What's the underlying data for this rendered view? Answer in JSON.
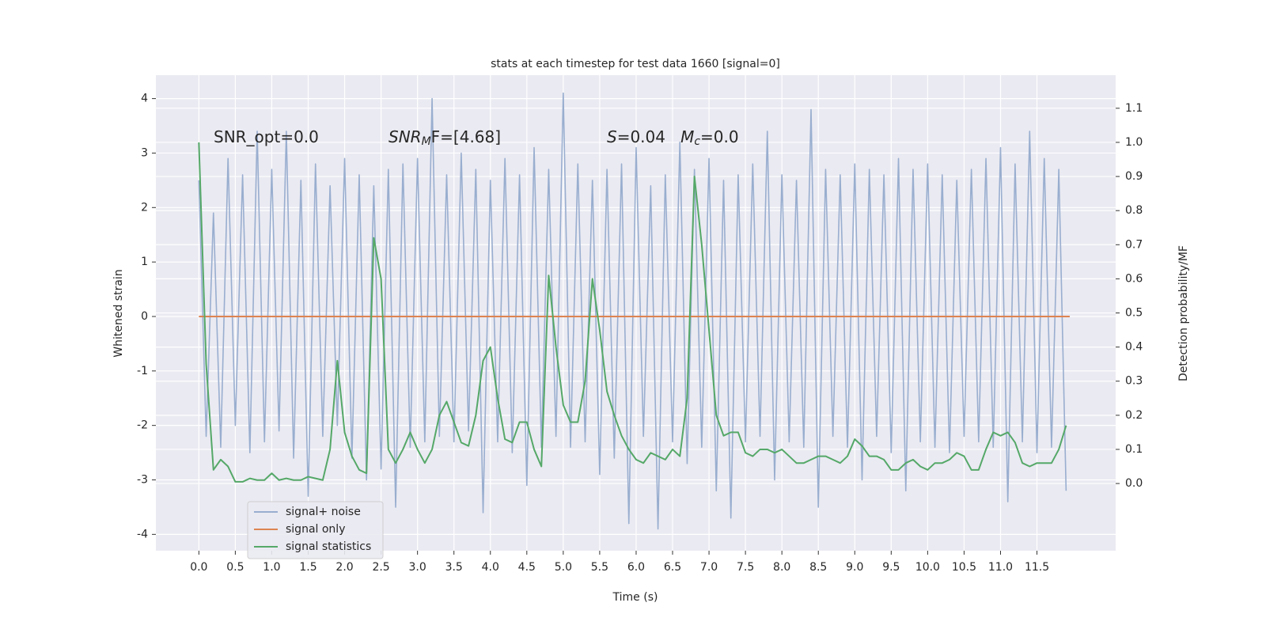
{
  "chart_data": {
    "type": "line",
    "title": "stats at each timestep for test data 1660 [signal=0]",
    "xlabel": "Time (s)",
    "ylabel": "Whitened strain",
    "y2label": "Detection probability/MF",
    "background": "#eaeaf2",
    "grid": true,
    "legend_loc": "lower left",
    "xlim": [
      -0.59,
      12.58
    ],
    "ylim": [
      -4.3,
      4.43
    ],
    "y2lim": [
      -0.197,
      1.197
    ],
    "xticks": [
      {
        "value": 0,
        "label": "0.0"
      },
      0.5,
      {
        "value": 1,
        "label": "1.0"
      },
      1.5,
      {
        "value": 2,
        "label": "2.0"
      },
      2.5,
      {
        "value": 3,
        "label": "3.0"
      },
      3.5,
      {
        "value": 4,
        "label": "4.0"
      },
      4.5,
      {
        "value": 5,
        "label": "5.0"
      },
      5.5,
      {
        "value": 6,
        "label": "6.0"
      },
      6.5,
      {
        "value": 7,
        "label": "7.0"
      },
      7.5,
      {
        "value": 8,
        "label": "8.0"
      },
      8.5,
      {
        "value": 9,
        "label": "9.0"
      },
      9.5,
      {
        "value": 10,
        "label": "10.0"
      },
      10.5,
      {
        "value": 11,
        "label": "11.0"
      },
      11.5
    ],
    "yticks": [
      -4,
      -3,
      -2,
      -1,
      0,
      1,
      2,
      3,
      4
    ],
    "y2ticks": [
      {
        "value": 0,
        "label": "0.0"
      },
      0.1,
      0.2,
      0.3,
      0.4,
      0.5,
      0.6,
      0.7,
      0.8,
      0.9,
      {
        "value": 1,
        "label": "1.0"
      },
      1.1
    ],
    "annotations": [
      [
        {
          "text": "SNR_opt=0.0"
        }
      ],
      [
        {
          "text": "SNR",
          "style": "italic"
        },
        {
          "text": "M",
          "style": "sub"
        },
        {
          "text": "F=[4.68]"
        }
      ],
      [
        {
          "text": "S",
          "style": "italic"
        },
        {
          "text": "=0.04   "
        },
        {
          "text": "M",
          "style": "italic"
        },
        {
          "text": "c",
          "style": "sub"
        },
        {
          "text": "=0.0"
        }
      ]
    ],
    "x": [
      0.0,
      0.1,
      0.2,
      0.3,
      0.4,
      0.5,
      0.6,
      0.7,
      0.8,
      0.9,
      1.0,
      1.1,
      1.2,
      1.3,
      1.4,
      1.5,
      1.6,
      1.7,
      1.8,
      1.9,
      2.0,
      2.1,
      2.2,
      2.3,
      2.4,
      2.5,
      2.6,
      2.7,
      2.8,
      2.9,
      3.0,
      3.1,
      3.2,
      3.3,
      3.4,
      3.5,
      3.6,
      3.7,
      3.8,
      3.9,
      4.0,
      4.1,
      4.2,
      4.3,
      4.4,
      4.5,
      4.6,
      4.7,
      4.8,
      4.9,
      5.0,
      5.1,
      5.2,
      5.3,
      5.4,
      5.5,
      5.6,
      5.7,
      5.8,
      5.9,
      6.0,
      6.1,
      6.2,
      6.3,
      6.4,
      6.5,
      6.6,
      6.7,
      6.8,
      6.9,
      7.0,
      7.1,
      7.2,
      7.3,
      7.4,
      7.5,
      7.6,
      7.7,
      7.8,
      7.9,
      8.0,
      8.1,
      8.2,
      8.3,
      8.4,
      8.5,
      8.6,
      8.7,
      8.8,
      8.9,
      9.0,
      9.1,
      9.2,
      9.3,
      9.4,
      9.5,
      9.6,
      9.7,
      9.8,
      9.9,
      10.0,
      10.1,
      10.2,
      10.3,
      10.4,
      10.5,
      10.6,
      10.7,
      10.8,
      10.9,
      11.0,
      11.1,
      11.2,
      11.3,
      11.4,
      11.5,
      11.6,
      11.7,
      11.8,
      11.9
    ],
    "series": [
      {
        "name": "signal+ noise",
        "color": "#99aecf",
        "values": [
          2.5,
          -2.2,
          1.9,
          -2.4,
          2.9,
          -2.0,
          2.6,
          -2.5,
          3.4,
          -2.3,
          2.7,
          -2.1,
          3.4,
          -2.6,
          2.5,
          -3.3,
          2.8,
          -2.2,
          2.4,
          -2.0,
          2.9,
          -2.6,
          2.6,
          -3.0,
          2.4,
          -2.8,
          2.7,
          -3.5,
          2.8,
          -2.4,
          2.9,
          -2.3,
          4.0,
          -2.2,
          2.6,
          -2.3,
          3.0,
          -2.1,
          2.7,
          -3.6,
          2.5,
          -2.3,
          2.9,
          -2.5,
          2.6,
          -3.1,
          3.1,
          -2.4,
          2.7,
          -2.2,
          4.1,
          -2.4,
          2.8,
          -2.3,
          2.5,
          -2.9,
          2.7,
          -2.6,
          2.8,
          -3.8,
          3.1,
          -2.2,
          2.4,
          -3.9,
          2.6,
          -2.3,
          3.2,
          -2.7,
          2.7,
          -2.4,
          2.9,
          -3.2,
          2.5,
          -3.7,
          2.6,
          -2.3,
          2.8,
          -2.2,
          3.4,
          -3.0,
          2.6,
          -2.3,
          2.5,
          -2.4,
          3.8,
          -3.5,
          2.7,
          -2.2,
          2.6,
          -2.4,
          2.8,
          -3.0,
          2.7,
          -2.2,
          2.6,
          -2.5,
          2.9,
          -3.2,
          2.7,
          -2.3,
          2.8,
          -2.4,
          2.6,
          -2.5,
          2.5,
          -2.2,
          2.7,
          -2.3,
          2.9,
          -2.4,
          3.1,
          -3.4,
          2.8,
          -2.3,
          3.4,
          -2.5,
          2.9,
          -2.4,
          2.7,
          -3.2
        ]
      },
      {
        "name": "signal only",
        "color": "#dd8452",
        "x": [
          0,
          11.95
        ],
        "values": [
          0,
          0
        ]
      },
      {
        "name": "signal statistics",
        "color": "#55a868",
        "axis": "y2",
        "values": [
          1.0,
          0.35,
          0.04,
          0.07,
          0.05,
          0.005,
          0.005,
          0.015,
          0.01,
          0.01,
          0.03,
          0.01,
          0.015,
          0.01,
          0.01,
          0.02,
          0.015,
          0.01,
          0.1,
          0.36,
          0.15,
          0.08,
          0.04,
          0.03,
          0.72,
          0.6,
          0.1,
          0.06,
          0.1,
          0.15,
          0.1,
          0.06,
          0.1,
          0.2,
          0.24,
          0.18,
          0.12,
          0.11,
          0.2,
          0.36,
          0.4,
          0.25,
          0.13,
          0.12,
          0.18,
          0.18,
          0.1,
          0.05,
          0.61,
          0.4,
          0.23,
          0.18,
          0.18,
          0.3,
          0.6,
          0.45,
          0.27,
          0.2,
          0.14,
          0.1,
          0.07,
          0.06,
          0.09,
          0.08,
          0.07,
          0.1,
          0.08,
          0.25,
          0.9,
          0.7,
          0.45,
          0.2,
          0.14,
          0.15,
          0.15,
          0.09,
          0.08,
          0.1,
          0.1,
          0.09,
          0.1,
          0.08,
          0.06,
          0.06,
          0.07,
          0.08,
          0.08,
          0.07,
          0.06,
          0.08,
          0.13,
          0.11,
          0.08,
          0.08,
          0.07,
          0.04,
          0.04,
          0.06,
          0.07,
          0.05,
          0.04,
          0.06,
          0.06,
          0.07,
          0.09,
          0.08,
          0.04,
          0.04,
          0.1,
          0.15,
          0.14,
          0.15,
          0.12,
          0.06,
          0.05,
          0.06,
          0.06,
          0.06,
          0.1,
          0.17
        ]
      }
    ]
  }
}
